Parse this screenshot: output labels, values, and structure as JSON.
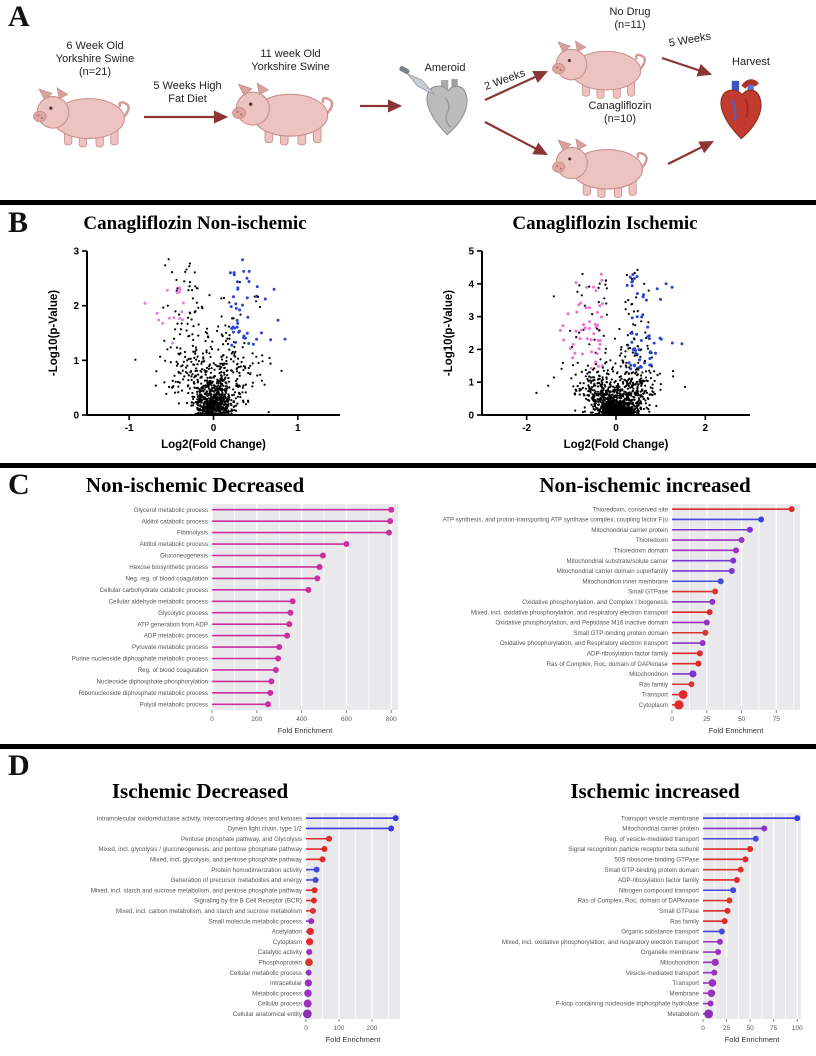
{
  "panelA": {
    "label": "A",
    "swine_start": [
      "6 Week Old",
      "Yorkshire Swine",
      "(n=21)"
    ],
    "diet_arrow": [
      "5 Weeks High",
      "Fat Diet"
    ],
    "swine_11wk": [
      "11 week Old",
      "Yorkshire Swine"
    ],
    "ameroid": "Ameroid",
    "two_weeks": "2 Weeks",
    "no_drug": [
      "No Drug",
      "(n=11)"
    ],
    "canagliflozin": [
      "Canagliflozin",
      "(n=10)"
    ],
    "five_weeks": "5 Weeks",
    "harvest": "Harvest"
  },
  "panelB": {
    "label": "B"
  },
  "panelC": {
    "label": "C"
  },
  "panelD": {
    "label": "D"
  },
  "chart_data": [
    {
      "id": "volcano-nonischemic",
      "type": "scatter",
      "variant": "volcano",
      "title": "Canagliflozin Non-ischemic",
      "xlabel": "Log2(Fold Change)",
      "ylabel": "-Log10(p-Value)",
      "xlim": [
        -1.5,
        1.5
      ],
      "xticks": [
        -1,
        0,
        1
      ],
      "ylim": [
        0,
        3
      ],
      "yticks": [
        0,
        1,
        2,
        3
      ],
      "colors": {
        "base": "#000000",
        "up": "#2a44cc",
        "down": "#ef7fd4"
      },
      "gen": {
        "seed": 7,
        "n": 1000,
        "null_frac": 0.86,
        "null_x_sd": 0.16,
        "sig_x_min": 0.18,
        "sig_x_sd": 0.22,
        "sig_y_min": 0.5,
        "sig_y_max": 2.9,
        "down_frac": 0.45,
        "threshold_y": 1.25,
        "up_x": 0.2,
        "down_x": -0.3,
        "up_color_prob": 0.8,
        "down_color_prob": 0.35
      }
    },
    {
      "id": "volcano-ischemic",
      "type": "scatter",
      "variant": "volcano",
      "title": "Canagliflozin Ischemic",
      "xlabel": "Log2(Fold Change)",
      "ylabel": "-Log10(p-Value)",
      "xlim": [
        -3,
        3
      ],
      "xticks": [
        -2,
        0,
        2
      ],
      "ylim": [
        0,
        5
      ],
      "yticks": [
        0,
        1,
        2,
        3,
        4,
        5
      ],
      "colors": {
        "base": "#000000",
        "up": "#2a44cc",
        "down": "#f06fd2"
      },
      "gen": {
        "seed": 13,
        "n": 1300,
        "null_frac": 0.8,
        "null_x_sd": 0.3,
        "sig_x_min": 0.2,
        "sig_x_sd": 0.45,
        "sig_y_min": 0.6,
        "sig_y_max": 4.45,
        "down_frac": 0.47,
        "threshold_y": 1.4,
        "up_x": 0.25,
        "down_x": -0.3,
        "up_color_prob": 0.6,
        "down_color_prob": 0.6
      }
    },
    {
      "id": "nonischemic-decreased",
      "type": "lollipop",
      "title": "Non-ischemic Decreased",
      "xlabel": "Fold Enrichment",
      "xticks": [
        0,
        200,
        400,
        600,
        800
      ],
      "xmax": 830,
      "items": [
        {
          "label": "Glycerol metabolic process",
          "value": 800,
          "color": "#cb2f9f"
        },
        {
          "label": "Alditol catabolic process",
          "value": 795,
          "color": "#cb2f9f"
        },
        {
          "label": "Fibrinolysis",
          "value": 790,
          "color": "#cb2f9f"
        },
        {
          "label": "Alditol metabolic process",
          "value": 600,
          "color": "#cb2f9f"
        },
        {
          "label": "Gluconeogenesis",
          "value": 495,
          "color": "#cb2f9f"
        },
        {
          "label": "Hexose biosynthetic process",
          "value": 480,
          "color": "#cb2f9f"
        },
        {
          "label": "Neg. reg. of blood coagulation",
          "value": 470,
          "color": "#cb2f9f"
        },
        {
          "label": "Cellular carbohydrate catabolic process",
          "value": 430,
          "color": "#cb2f9f"
        },
        {
          "label": "Cellular aldehyde metabolic process",
          "value": 360,
          "color": "#cb2f9f"
        },
        {
          "label": "Glycolytic process",
          "value": 350,
          "color": "#cb2f9f"
        },
        {
          "label": "ATP generation from ADP",
          "value": 345,
          "color": "#cb2f9f"
        },
        {
          "label": "ADP metabolic process",
          "value": 335,
          "color": "#cb2f9f"
        },
        {
          "label": "Pyruvate metabolic process",
          "value": 300,
          "color": "#cb2f9f"
        },
        {
          "label": "Purine nucleoside diphosphate metabolic process",
          "value": 295,
          "color": "#cb2f9f"
        },
        {
          "label": "Reg. of blood coagulation",
          "value": 285,
          "color": "#cb2f9f"
        },
        {
          "label": "Nucleoside diphosphate phosphorylation",
          "value": 265,
          "color": "#cb2f9f"
        },
        {
          "label": "Ribonucleoside diphosphate metabolic process",
          "value": 260,
          "color": "#cb2f9f"
        },
        {
          "label": "Polyol metabolic process",
          "value": 250,
          "color": "#cb2f9f"
        }
      ]
    },
    {
      "id": "nonischemic-increased",
      "type": "lollipop",
      "title": "Non-ischemic increased",
      "xlabel": "Fold Enrichment",
      "xticks": [
        0,
        25,
        50,
        75
      ],
      "xmax": 92,
      "items": [
        {
          "label": "Thioredoxin, conserved site",
          "value": 86,
          "color": "#e02a2a"
        },
        {
          "label": "ATP synthesis, and proton-transporting ATP synthase complex, coupling factor F(o",
          "value": 64,
          "color": "#4040e0"
        },
        {
          "label": "Mitochondrial carrier protein",
          "value": 56,
          "color": "#7a35d2"
        },
        {
          "label": "Thioredoxin",
          "value": 50,
          "color": "#9a30c0"
        },
        {
          "label": "Thioredoxin domain",
          "value": 46,
          "color": "#9a30c0"
        },
        {
          "label": "Mitochondrial substrate/solute carrier",
          "value": 44,
          "color": "#7a35d2"
        },
        {
          "label": "Mitochondrial carrier domain superfamily",
          "value": 43,
          "color": "#7a35d2"
        },
        {
          "label": "Mitochondrion inner membrane",
          "value": 35,
          "color": "#4848d8"
        },
        {
          "label": "Small GTPase",
          "value": 31,
          "color": "#d8352f"
        },
        {
          "label": "Oxidative phosphorylation, and Complex I biogenesis",
          "value": 29,
          "color": "#8c35c8"
        },
        {
          "label": "Mixed, incl. oxidative phosphorylation, and respiratory electron transport",
          "value": 27,
          "color": "#e02a2a"
        },
        {
          "label": "Oxidative phosphorylation, and Peptidase M16 inactive domain",
          "value": 25,
          "color": "#9a30c0"
        },
        {
          "label": "Small GTP-binding protein domain",
          "value": 24,
          "color": "#d8352f"
        },
        {
          "label": "Oxidative phosphorylation, and Respiratory electron transport",
          "value": 22,
          "color": "#8c35c8"
        },
        {
          "label": "ADP-ribosylation factor family",
          "value": 20,
          "color": "#e02a2a"
        },
        {
          "label": "Ras of Complex, Roc, domain of DAPkinase",
          "value": 19,
          "color": "#e02a2a"
        },
        {
          "label": "Mitochondrion",
          "value": 15,
          "color": "#7a35d2",
          "r": 3.6
        },
        {
          "label": "Ras family",
          "value": 14,
          "color": "#d8352f"
        },
        {
          "label": "Transport",
          "value": 8,
          "color": "#e02a2a",
          "r": 4.4
        },
        {
          "label": "Cytoplasm",
          "value": 5,
          "color": "#e02a2a",
          "r": 4.6
        }
      ]
    },
    {
      "id": "ischemic-decreased",
      "type": "lollipop",
      "title": "Ischemic Decreased",
      "xlabel": "Fold Enrichment",
      "xticks": [
        0,
        100,
        200
      ],
      "xmax": 285,
      "items": [
        {
          "label": "Intramolecular oxidoreductase activity, interconverting aldoses and ketoses",
          "value": 272,
          "color": "#3a3ae0"
        },
        {
          "label": "Dynein light chain, type 1/2",
          "value": 258,
          "color": "#3a3ae0"
        },
        {
          "label": "Pentose phosphate pathway, and Glycolysis",
          "value": 70,
          "color": "#e02a2a"
        },
        {
          "label": "Mixed, incl. glycolysis / gluconeogenesis, and pentose phosphate pathway",
          "value": 56,
          "color": "#e02a2a"
        },
        {
          "label": "Mixed, incl. glycolysis, and pentose phosphate pathway",
          "value": 50,
          "color": "#e02a2a"
        },
        {
          "label": "Protein homodimerization activity",
          "value": 32,
          "color": "#4848d8"
        },
        {
          "label": "Generation of precursor metabolites and energy",
          "value": 29,
          "color": "#4848d8"
        },
        {
          "label": "Mixed, incl. starch and sucrose metabolism, and pentose phosphate pathway",
          "value": 26,
          "color": "#e02a2a"
        },
        {
          "label": "Signaling by the B Cell Receptor (BCR)",
          "value": 24,
          "color": "#e02a2a"
        },
        {
          "label": "Mixed, incl. carbon metabolism, and starch and sucrose metabolism",
          "value": 21,
          "color": "#d8352f"
        },
        {
          "label": "Small molecule metabolic process",
          "value": 16,
          "color": "#9a30c0"
        },
        {
          "label": "Acetylation",
          "value": 13,
          "color": "#e02a2a",
          "r": 3.6
        },
        {
          "label": "Cytoplasm",
          "value": 11,
          "color": "#e02a2a",
          "r": 3.6
        },
        {
          "label": "Catalytic activity",
          "value": 10,
          "color": "#9a30c0"
        },
        {
          "label": "Phosphoprotein",
          "value": 9,
          "color": "#d8352f",
          "r": 3.8
        },
        {
          "label": "Cellular metabolic process",
          "value": 8,
          "color": "#9a30c0"
        },
        {
          "label": "Intracellular",
          "value": 7,
          "color": "#9a30c0",
          "r": 3.6
        },
        {
          "label": "Metabolic process",
          "value": 6,
          "color": "#9a30c0",
          "r": 3.8
        },
        {
          "label": "Cellular process",
          "value": 5,
          "color": "#9a30c0",
          "r": 4
        },
        {
          "label": "Cellular anatomical entity",
          "value": 4,
          "color": "#8c2fb8",
          "r": 4.4
        }
      ]
    },
    {
      "id": "ischemic-increased",
      "type": "lollipop",
      "title": "Ischemic increased",
      "xlabel": "Fold Enrichment",
      "xticks": [
        0,
        25,
        50,
        75,
        100
      ],
      "xmax": 104,
      "items": [
        {
          "label": "Transport vesicle membrane",
          "value": 100,
          "color": "#3a3ae0"
        },
        {
          "label": "Mitochondrial carrier protein",
          "value": 65,
          "color": "#8c35c8"
        },
        {
          "label": "Reg. of vesicle-mediated transport",
          "value": 56,
          "color": "#4848d8"
        },
        {
          "label": "Signal recognition particle receptor beta subunit",
          "value": 50,
          "color": "#e02a2a"
        },
        {
          "label": "50S ribosome-binding GTPase",
          "value": 45,
          "color": "#e02a2a"
        },
        {
          "label": "Small GTP-binding protein domain",
          "value": 40,
          "color": "#d8352f"
        },
        {
          "label": "ADP-ribosylation factor family",
          "value": 36,
          "color": "#e02a2a"
        },
        {
          "label": "Nitrogen compound transport",
          "value": 32,
          "color": "#4848d8"
        },
        {
          "label": "Ras of Complex, Roc, domain of DAPkinase",
          "value": 28,
          "color": "#d8352f"
        },
        {
          "label": "Small GTPase",
          "value": 26,
          "color": "#e02a2a"
        },
        {
          "label": "Ras family",
          "value": 23,
          "color": "#e02a2a"
        },
        {
          "label": "Organic substance transport",
          "value": 20,
          "color": "#4848d8"
        },
        {
          "label": "Mixed, incl. oxidative phosphorylation, and respiratory electron transport",
          "value": 18,
          "color": "#9a30c0"
        },
        {
          "label": "Organelle membrane",
          "value": 16,
          "color": "#9a30c0"
        },
        {
          "label": "Mitochondrion",
          "value": 13,
          "color": "#9a30c0",
          "r": 3.6
        },
        {
          "label": "Vesicle-mediated transport",
          "value": 12,
          "color": "#9a30c0"
        },
        {
          "label": "Transport",
          "value": 10,
          "color": "#9a30c0",
          "r": 3.8
        },
        {
          "label": "Membrane",
          "value": 9,
          "color": "#9a30c0",
          "r": 3.8
        },
        {
          "label": "P-loop containing nucleoside triphosphate hydrolase",
          "value": 8,
          "color": "#9a30c0"
        },
        {
          "label": "Metabolism",
          "value": 6,
          "color": "#8c2fb8",
          "r": 4.4
        }
      ]
    }
  ]
}
